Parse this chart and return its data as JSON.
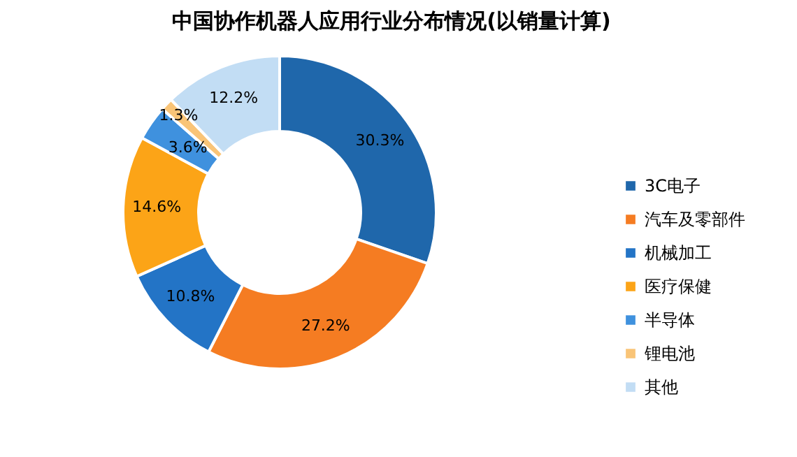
{
  "chart_data": {
    "type": "donut",
    "title": "中国协作机器人应用行业分布情况(以销量计算)",
    "categories": [
      "3C电子",
      "汽车及零部件",
      "机械加工",
      "医疗保健",
      "半导体",
      "锂电池",
      "其他"
    ],
    "values": [
      30.3,
      27.2,
      10.8,
      14.6,
      3.6,
      1.3,
      12.2
    ],
    "colors": [
      "#1f67ab",
      "#f57c22",
      "#2374c6",
      "#fca417",
      "#3f91de",
      "#f9c477",
      "#c2ddf4"
    ],
    "value_labels": [
      "30.3%",
      "27.2%",
      "10.8%",
      "14.6%",
      "3.6%",
      "1.3%",
      "12.2%"
    ],
    "legend": "right"
  }
}
